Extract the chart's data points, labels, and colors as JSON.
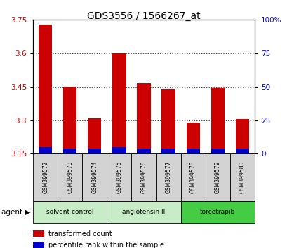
{
  "title": "GDS3556 / 1566267_at",
  "samples": [
    "GSM399572",
    "GSM399573",
    "GSM399574",
    "GSM399575",
    "GSM399576",
    "GSM399577",
    "GSM399578",
    "GSM399579",
    "GSM399580"
  ],
  "transformed_counts": [
    3.73,
    3.45,
    3.31,
    3.6,
    3.465,
    3.44,
    3.29,
    3.445,
    3.305
  ],
  "percentile_ranks": [
    5,
    4,
    4,
    5,
    4,
    4,
    4,
    4,
    4
  ],
  "base_value": 3.15,
  "ylim_left": [
    3.15,
    3.75
  ],
  "ylim_right": [
    0,
    100
  ],
  "yticks_left": [
    3.15,
    3.3,
    3.45,
    3.6,
    3.75
  ],
  "yticks_right": [
    0,
    25,
    50,
    75,
    100
  ],
  "bar_color_red": "#cc0000",
  "bar_color_blue": "#0000cc",
  "bar_width": 0.55,
  "groups_data": [
    {
      "label": "solvent control",
      "start": 0,
      "end": 2,
      "color": "#c8ecc8"
    },
    {
      "label": "angiotensin II",
      "start": 3,
      "end": 5,
      "color": "#c8ecc8"
    },
    {
      "label": "torcetrapib",
      "start": 6,
      "end": 8,
      "color": "#44cc44"
    }
  ],
  "agent_label": "agent",
  "legend_red": "transformed count",
  "legend_blue": "percentile rank within the sample",
  "title_fontsize": 10,
  "tick_label_fontsize": 7.5,
  "bg_color": "#ffffff",
  "plot_bg_color": "#ffffff",
  "cell_bg_color": "#d3d3d3"
}
